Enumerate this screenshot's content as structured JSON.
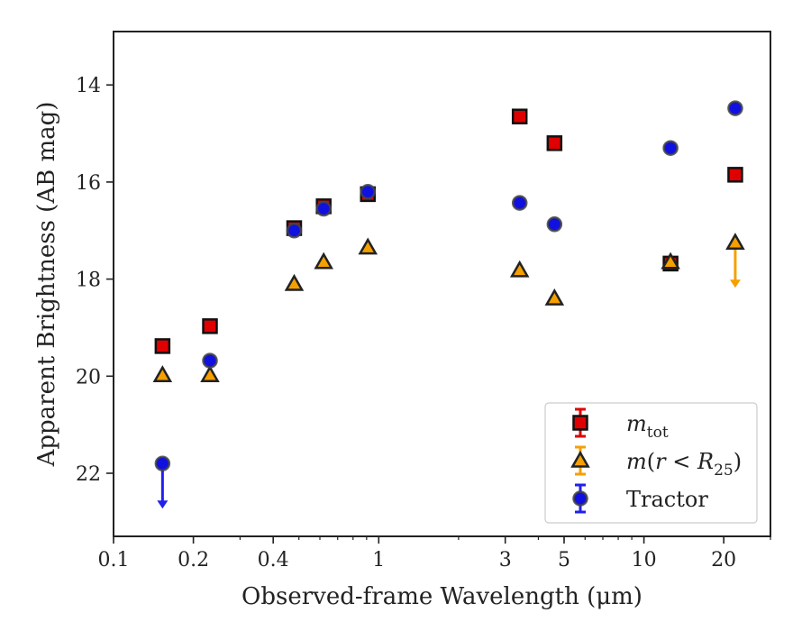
{
  "chart_data": {
    "type": "scatter",
    "title": "",
    "xlabel": "Observed-frame Wavelength (μm)",
    "ylabel": "Apparent Brightness (AB mag)",
    "xscale": "log",
    "xlim": [
      0.1,
      30
    ],
    "ylim": [
      23.3,
      12.9
    ],
    "y_inverted": true,
    "grid": false,
    "legend_position": "lower-right",
    "xticks": [
      {
        "value": 0.1,
        "label": "0.1"
      },
      {
        "value": 0.2,
        "label": "0.2"
      },
      {
        "value": 0.4,
        "label": "0.4"
      },
      {
        "value": 1,
        "label": "1"
      },
      {
        "value": 3,
        "label": "3"
      },
      {
        "value": 5,
        "label": "5"
      },
      {
        "value": 10,
        "label": "10"
      },
      {
        "value": 20,
        "label": "20"
      }
    ],
    "yticks": [
      {
        "value": 14,
        "label": "14"
      },
      {
        "value": 16,
        "label": "16"
      },
      {
        "value": 18,
        "label": "18"
      },
      {
        "value": 20,
        "label": "20"
      },
      {
        "value": 22,
        "label": "22"
      }
    ],
    "series": [
      {
        "name": "m_tot",
        "legend_html": "<tspan font-style='italic'>m</tspan><tspan dy='7' font-size='17'>tot</tspan>",
        "marker": "square",
        "color": "#e00000",
        "edge": "#111111",
        "points": [
          {
            "x": 0.153,
            "y": 19.38
          },
          {
            "x": 0.231,
            "y": 18.97
          },
          {
            "x": 0.48,
            "y": 16.95
          },
          {
            "x": 0.62,
            "y": 16.5
          },
          {
            "x": 0.91,
            "y": 16.25
          },
          {
            "x": 3.4,
            "y": 14.65
          },
          {
            "x": 4.6,
            "y": 15.2
          },
          {
            "x": 12.6,
            "y": 17.68
          },
          {
            "x": 22.1,
            "y": 15.85
          }
        ]
      },
      {
        "name": "m(r<R25)",
        "legend_html": "<tspan font-style='italic'>m</tspan>(<tspan font-style='italic'>r</tspan> &lt; <tspan font-style='italic'>R</tspan><tspan dy='7' font-size='17'>25</tspan><tspan dy='-7'>)</tspan>",
        "marker": "triangle",
        "color": "#f5a000",
        "edge": "#222222",
        "points": [
          {
            "x": 0.153,
            "y": 19.98
          },
          {
            "x": 0.231,
            "y": 19.98
          },
          {
            "x": 0.48,
            "y": 18.1
          },
          {
            "x": 0.62,
            "y": 17.65
          },
          {
            "x": 0.91,
            "y": 17.35
          },
          {
            "x": 3.4,
            "y": 17.82
          },
          {
            "x": 4.6,
            "y": 18.4
          },
          {
            "x": 12.6,
            "y": 17.65
          },
          {
            "x": 22.1,
            "y": 17.25,
            "upper_limit": true
          }
        ]
      },
      {
        "name": "Tractor",
        "legend_html": "Tractor",
        "marker": "circle",
        "color": "#1010e0",
        "edge": "#444444",
        "points": [
          {
            "x": 0.153,
            "y": 21.8,
            "upper_limit": true
          },
          {
            "x": 0.231,
            "y": 19.68
          },
          {
            "x": 0.48,
            "y": 17.0
          },
          {
            "x": 0.62,
            "y": 16.55
          },
          {
            "x": 0.91,
            "y": 16.2
          },
          {
            "x": 3.4,
            "y": 16.43
          },
          {
            "x": 4.6,
            "y": 16.87
          },
          {
            "x": 12.6,
            "y": 15.3
          },
          {
            "x": 22.1,
            "y": 14.48
          }
        ]
      }
    ]
  }
}
